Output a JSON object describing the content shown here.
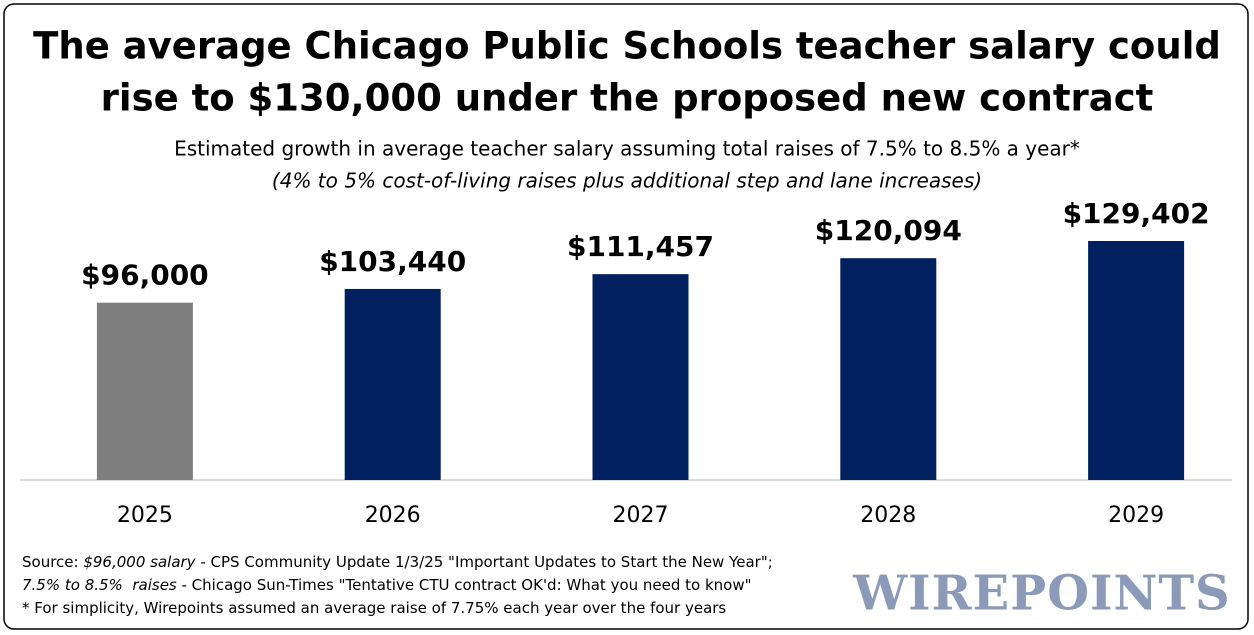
{
  "chart_data": {
    "type": "bar",
    "title": [
      "The average Chicago Public Schools teacher salary could",
      "rise to $130,000 under the proposed new contract"
    ],
    "subtitle": "Estimated growth in average teacher salary assuming total raises of 7.5% to 8.5% a year*",
    "subtitle_note": "(4% to 5% cost-of-living raises plus additional step and lane increases)",
    "categories": [
      "2025",
      "2026",
      "2027",
      "2028",
      "2029"
    ],
    "values": [
      96000,
      103440,
      111457,
      120094,
      129402
    ],
    "value_labels": [
      "$96,000",
      "$103,440",
      "$111,457",
      "$120,094",
      "$129,402"
    ],
    "colors": [
      "#7f7f7f",
      "#002060",
      "#002060",
      "#002060",
      "#002060"
    ],
    "notes": [
      [
        {
          "text": "Source: ",
          "italic": false
        },
        {
          "text": "$96,000 salary",
          "italic": true
        },
        {
          "text": " - CPS Community Update 1/3/25 \"Important Updates to Start the New Year\";",
          "italic": false
        }
      ],
      [
        {
          "text": "7.5% to 8.5%  raises",
          "italic": true
        },
        {
          "text": " - Chicago Sun-Times \"Tentative CTU contract OK'd: What you need to know\"",
          "italic": false
        }
      ],
      [
        {
          "text": "* For simplicity, Wirepoints assumed an average raise of 7.75% each year over the four years",
          "italic": false
        }
      ]
    ],
    "logo": "WIREPOINTS"
  }
}
